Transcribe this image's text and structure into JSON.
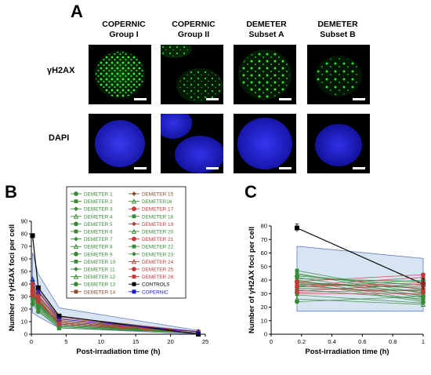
{
  "panel_a": {
    "letter": "A",
    "columns": [
      {
        "line1": "COPERNIC",
        "line2": "Group I"
      },
      {
        "line1": "COPERNIC",
        "line2": "Group II"
      },
      {
        "line1": "DEMETER",
        "line2": "Subset A"
      },
      {
        "line1": "DEMETER",
        "line2": "Subset B"
      }
    ],
    "rows": [
      {
        "label": "γH2AX",
        "stain_color": "#2fdc2f"
      },
      {
        "label": "DAPI",
        "stain_color": "#2a2ad8"
      }
    ]
  },
  "chart_data": [
    {
      "panel": "B",
      "type": "line",
      "xlabel": "Post-irradiation time (h)",
      "ylabel": "Number of γH2AX foci per cell",
      "xlim": [
        0,
        25
      ],
      "ylim": [
        0,
        90
      ],
      "xticks": [
        "0",
        "5",
        "10",
        "15",
        "20",
        "25"
      ],
      "yticks": [
        "0",
        "10",
        "20",
        "30",
        "40",
        "50",
        "60",
        "70",
        "80",
        "90"
      ],
      "x": [
        0.17,
        1,
        4,
        24
      ],
      "legend_position": "top-right",
      "series": [
        {
          "name": "DEMETER 1",
          "color": "#3a8a3a",
          "values": [
            42,
            30,
            10,
            2
          ]
        },
        {
          "name": "DEMETER 2",
          "color": "#3a8a3a",
          "values": [
            40,
            28,
            9,
            2
          ]
        },
        {
          "name": "DEMETER 3",
          "color": "#3a8a3a",
          "values": [
            38,
            27,
            9,
            2
          ]
        },
        {
          "name": "DEMETER 4",
          "color": "#3a8a3a",
          "values": [
            36,
            26,
            8,
            1
          ]
        },
        {
          "name": "DEMETER 5",
          "color": "#3a8a3a",
          "values": [
            35,
            25,
            8,
            1
          ]
        },
        {
          "name": "DEMETER 6",
          "color": "#3a8a3a",
          "values": [
            34,
            24,
            7,
            1
          ]
        },
        {
          "name": "DEMETER 7",
          "color": "#3a8a3a",
          "values": [
            33,
            24,
            7,
            1
          ]
        },
        {
          "name": "DEMETER 8",
          "color": "#3a8a3a",
          "values": [
            32,
            23,
            7,
            1
          ]
        },
        {
          "name": "DEMETER 9",
          "color": "#3a8a3a",
          "values": [
            30,
            22,
            6,
            1
          ]
        },
        {
          "name": "DEMETER 10",
          "color": "#3a8a3a",
          "values": [
            29,
            21,
            6,
            1
          ]
        },
        {
          "name": "DEMETER 11",
          "color": "#3a8a3a",
          "values": [
            27,
            20,
            6,
            1
          ]
        },
        {
          "name": "DEMETER 12",
          "color": "#3a8a3a",
          "values": [
            26,
            19,
            5,
            1
          ]
        },
        {
          "name": "DEMETER 13",
          "color": "#3a8a3a",
          "values": [
            24,
            18,
            5,
            1
          ]
        },
        {
          "name": "DEMETER 14",
          "color": "#8a4a2a",
          "values": [
            39,
            33,
            14,
            2
          ]
        },
        {
          "name": "DEMETER 15",
          "color": "#8a4a2a",
          "values": [
            37,
            31,
            12,
            2
          ]
        },
        {
          "name": "DEMETER16",
          "color": "#3a8a3a",
          "values": [
            35,
            29,
            11,
            2
          ]
        },
        {
          "name": "DEMETER 17",
          "color": "#c03a3a",
          "values": [
            40,
            35,
            13,
            2
          ]
        },
        {
          "name": "DEMETER 18",
          "color": "#3a8a3a",
          "values": [
            33,
            26,
            10,
            2
          ]
        },
        {
          "name": "DEMETER 19",
          "color": "#c03a3a",
          "values": [
            36,
            31,
            11,
            2
          ]
        },
        {
          "name": "DEMETER 20",
          "color": "#3a8a3a",
          "values": [
            31,
            25,
            9,
            1
          ]
        },
        {
          "name": "DEMETER 21",
          "color": "#c03a3a",
          "values": [
            34,
            30,
            10,
            2
          ]
        },
        {
          "name": "DEMETER 22",
          "color": "#3a8a3a",
          "values": [
            30,
            24,
            9,
            1
          ]
        },
        {
          "name": "DEMETER 23",
          "color": "#3a8a3a",
          "values": [
            28,
            22,
            8,
            1
          ]
        },
        {
          "name": "DEMETER 24",
          "color": "#c03a3a",
          "values": [
            33,
            28,
            9,
            2
          ]
        },
        {
          "name": "DEMETER 25",
          "color": "#c03a3a",
          "values": [
            32,
            27,
            9,
            2
          ]
        },
        {
          "name": "DEMETER 26",
          "color": "#c03a3a",
          "values": [
            31,
            26,
            8,
            1
          ]
        },
        {
          "name": "CONTROLS",
          "color": "#000000",
          "values": [
            78.5,
            37,
            14.5,
            0
          ]
        },
        {
          "name": "COPERNIC",
          "color": "#1a1acc",
          "values": [
            44,
            34,
            12,
            2
          ]
        }
      ],
      "copernic_band": {
        "color": "#cfe0ef",
        "upper": [
          65,
          48,
          21,
          3
        ],
        "lower": [
          17,
          14,
          5,
          0
        ]
      }
    },
    {
      "panel": "C",
      "type": "line",
      "xlabel": "Post-irradiation time (h)",
      "ylabel": "Number of γH2AX foci per cell",
      "xlim": [
        0,
        1
      ],
      "ylim": [
        0,
        80
      ],
      "xticks": [
        "0",
        "0.2",
        "0.4",
        "0.6",
        "0.8",
        "1"
      ],
      "yticks": [
        "0",
        "10",
        "20",
        "30",
        "40",
        "50",
        "60",
        "70",
        "80"
      ],
      "x": [
        0.17,
        1
      ],
      "series": [
        {
          "name": "CONTROLS",
          "color": "#000000",
          "values": [
            78.5,
            37
          ]
        },
        {
          "name": "DEMETER 1",
          "color": "#3a8a3a",
          "values": [
            47,
            30
          ]
        },
        {
          "name": "DEMETER 2",
          "color": "#3a8a3a",
          "values": [
            45,
            28
          ]
        },
        {
          "name": "DEMETER 3",
          "color": "#3a8a3a",
          "values": [
            44,
            33
          ]
        },
        {
          "name": "DEMETER 4",
          "color": "#3a8a3a",
          "values": [
            43,
            36
          ]
        },
        {
          "name": "DEMETER 5",
          "color": "#3a8a3a",
          "values": [
            42,
            27
          ]
        },
        {
          "name": "DEMETER 6",
          "color": "#3a8a3a",
          "values": [
            41,
            39
          ]
        },
        {
          "name": "DEMETER 7",
          "color": "#3a8a3a",
          "values": [
            40,
            25
          ]
        },
        {
          "name": "DEMETER 8",
          "color": "#3a8a3a",
          "values": [
            39,
            31
          ]
        },
        {
          "name": "DEMETER 9",
          "color": "#3a8a3a",
          "values": [
            38,
            24
          ]
        },
        {
          "name": "DEMETER 10",
          "color": "#3a8a3a",
          "values": [
            37,
            35
          ]
        },
        {
          "name": "DEMETER 11",
          "color": "#3a8a3a",
          "values": [
            36,
            29
          ]
        },
        {
          "name": "DEMETER 12",
          "color": "#3a8a3a",
          "values": [
            35,
            40
          ]
        },
        {
          "name": "DEMETER 13",
          "color": "#3a8a3a",
          "values": [
            33,
            26
          ]
        },
        {
          "name": "DEMETER 14",
          "color": "#8a4a2a",
          "values": [
            38,
            34
          ]
        },
        {
          "name": "DEMETER 15",
          "color": "#8a4a2a",
          "values": [
            34,
            32
          ]
        },
        {
          "name": "DEMETER 17",
          "color": "#c03a3a",
          "values": [
            39,
            44
          ]
        },
        {
          "name": "DEMETER 19",
          "color": "#c03a3a",
          "values": [
            36,
            42
          ]
        },
        {
          "name": "DEMETER 21",
          "color": "#c03a3a",
          "values": [
            35,
            38
          ]
        },
        {
          "name": "DEMETER 24",
          "color": "#c03a3a",
          "values": [
            32,
            37
          ]
        },
        {
          "name": "DEMETER 25",
          "color": "#c03a3a",
          "values": [
            31,
            33
          ]
        },
        {
          "name": "DEMETER 26",
          "color": "#c03a3a",
          "values": [
            30,
            30
          ]
        },
        {
          "name": "DEMETER 22",
          "color": "#3a8a3a",
          "values": [
            29,
            23
          ]
        },
        {
          "name": "DEMETER 23",
          "color": "#3a8a3a",
          "values": [
            26,
            22
          ]
        },
        {
          "name": "DEMETER 20",
          "color": "#3a8a3a",
          "values": [
            24,
            28
          ]
        }
      ],
      "copernic_band": {
        "color": "#cfe0ef",
        "upper": [
          65,
          56
        ],
        "lower": [
          17,
          17
        ]
      }
    }
  ]
}
